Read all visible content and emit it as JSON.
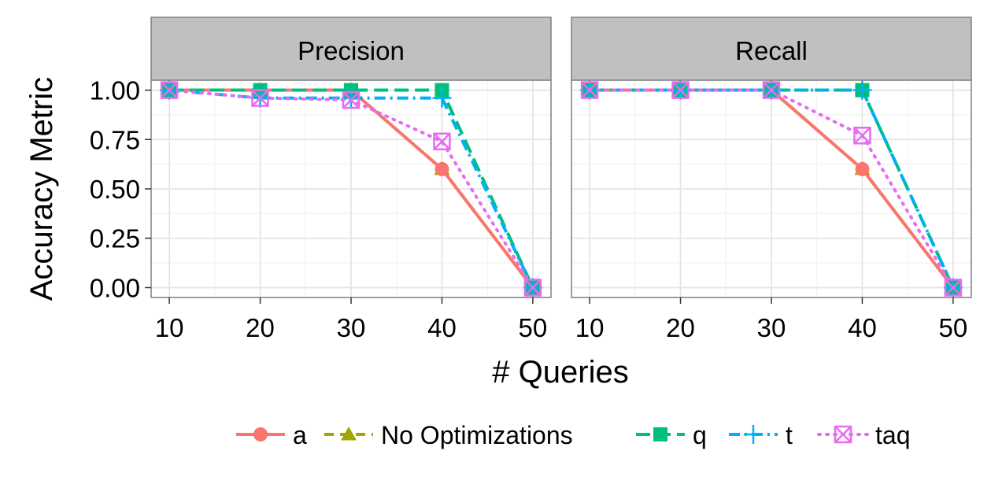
{
  "chart_data": {
    "type": "line",
    "xlabel": "# Queries",
    "ylabel": "Accuracy Metric",
    "x": [
      10,
      20,
      30,
      40,
      50
    ],
    "xlim": [
      8,
      52
    ],
    "ylim": [
      -0.05,
      1.05
    ],
    "xticks": [
      "10",
      "20",
      "30",
      "40",
      "50"
    ],
    "yticks": [
      "0.00",
      "0.25",
      "0.50",
      "0.75",
      "1.00"
    ],
    "grid": true,
    "legend_position": "bottom",
    "panels": [
      {
        "title": "Precision",
        "series": [
          {
            "name": "a",
            "values": [
              1.0,
              1.0,
              1.0,
              0.6,
              0.0
            ]
          },
          {
            "name": "No Optimizations",
            "values": [
              1.0,
              1.0,
              1.0,
              0.6,
              0.0
            ]
          },
          {
            "name": "q",
            "values": [
              1.0,
              1.0,
              1.0,
              1.0,
              0.0
            ]
          },
          {
            "name": "t",
            "values": [
              1.0,
              0.96,
              0.96,
              0.96,
              0.0
            ]
          },
          {
            "name": "taq",
            "values": [
              1.0,
              0.96,
              0.95,
              0.74,
              0.0
            ]
          }
        ]
      },
      {
        "title": "Recall",
        "series": [
          {
            "name": "a",
            "values": [
              1.0,
              1.0,
              1.0,
              0.6,
              0.0
            ]
          },
          {
            "name": "No Optimizations",
            "values": [
              1.0,
              1.0,
              1.0,
              0.6,
              0.0
            ]
          },
          {
            "name": "q",
            "values": [
              1.0,
              1.0,
              1.0,
              1.0,
              0.0
            ]
          },
          {
            "name": "t",
            "values": [
              1.0,
              1.0,
              1.0,
              1.0,
              0.0
            ]
          },
          {
            "name": "taq",
            "values": [
              1.0,
              1.0,
              1.0,
              0.77,
              0.0
            ]
          }
        ]
      }
    ],
    "series_styles": [
      {
        "name": "a",
        "color": "#F8766D",
        "dash": "solid",
        "marker": "circle"
      },
      {
        "name": "No Optimizations",
        "color": "#A3A500",
        "dash": "dashed",
        "marker": "triangle"
      },
      {
        "name": "q",
        "color": "#00BF7D",
        "dash": "longdash",
        "marker": "square"
      },
      {
        "name": "t",
        "color": "#00B0F6",
        "dash": "dashdot",
        "marker": "plus"
      },
      {
        "name": "taq",
        "color": "#E76BF3",
        "dash": "dotted",
        "marker": "boxed-x"
      }
    ]
  }
}
